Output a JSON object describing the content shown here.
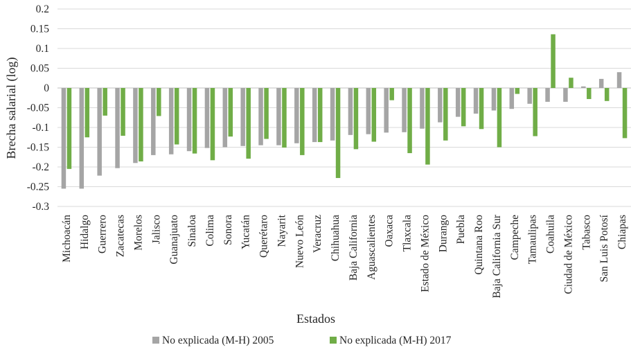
{
  "chart_data": {
    "type": "bar",
    "title": "",
    "xlabel": "Estados",
    "ylabel": "Brecha salarial (log)",
    "ylim": [
      -0.3,
      0.2
    ],
    "ytick_step": 0.05,
    "ytick_labels": [
      "0.2",
      "0.15",
      "0.1",
      "0.05",
      "0",
      "-0.05",
      "-0.1",
      "-0.15",
      "-0.2",
      "-0.25",
      "-0.3"
    ],
    "legend_position": "bottom",
    "grid": true,
    "categories": [
      "Michoacán",
      "Hidalgo",
      "Guerrero",
      "Zacatecas",
      "Morelos",
      "Jalisco",
      "Guanajuato",
      "Sinaloa",
      "Colima",
      "Sonora",
      "Yucatán",
      "Querétaro",
      "Nayarit",
      "Nuevo León",
      "Veracruz",
      "Chihuahua",
      "Baja California",
      "Aguascalientes",
      "Oaxaca",
      "Tlaxcala",
      "Estado de México",
      "Durango",
      "Puebla",
      "Quintana Roo",
      "Baja California Sur",
      "Campeche",
      "Tamaulipas",
      "Coahuila",
      "Ciudad de México",
      "Tabasco",
      "San Luis Potosí",
      "Chiapas"
    ],
    "series": [
      {
        "name": "No explicada (M-H) 2005",
        "color": "#a5a5a5",
        "values": [
          -0.255,
          -0.255,
          -0.222,
          -0.203,
          -0.19,
          -0.17,
          -0.168,
          -0.16,
          -0.152,
          -0.15,
          -0.147,
          -0.145,
          -0.145,
          -0.14,
          -0.137,
          -0.133,
          -0.119,
          -0.117,
          -0.113,
          -0.112,
          -0.103,
          -0.087,
          -0.073,
          -0.065,
          -0.057,
          -0.053,
          -0.04,
          -0.035,
          -0.035,
          0.004,
          0.023,
          0.04
        ]
      },
      {
        "name": "No explicada (M-H) 2017",
        "color": "#70ad47",
        "values": [
          -0.205,
          -0.125,
          -0.07,
          -0.121,
          -0.186,
          -0.071,
          -0.143,
          -0.166,
          -0.183,
          -0.123,
          -0.179,
          -0.129,
          -0.151,
          -0.17,
          -0.137,
          -0.228,
          -0.155,
          -0.136,
          -0.031,
          -0.165,
          -0.194,
          -0.133,
          -0.097,
          -0.104,
          -0.15,
          -0.015,
          -0.122,
          0.136,
          0.026,
          -0.028,
          -0.033,
          -0.127
        ]
      }
    ]
  }
}
